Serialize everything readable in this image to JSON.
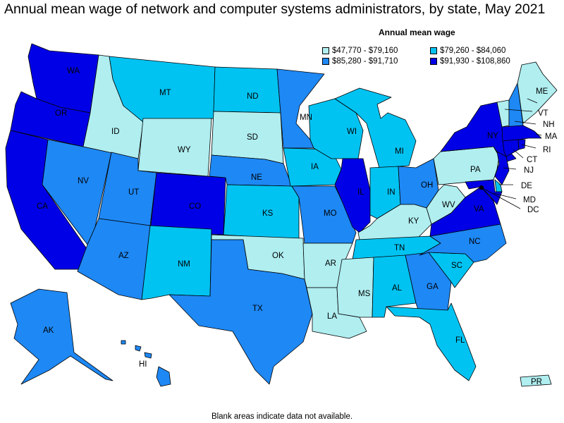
{
  "title": "Annual mean wage of network and computer systems administrators, by state, May 2021",
  "legend": {
    "title": "Annual mean wage",
    "items": [
      {
        "label": "$47,770 - $79,160",
        "color": "#b0eef0"
      },
      {
        "label": "$79,260 - $84,060",
        "color": "#00c3f2"
      },
      {
        "label": "$85,280 - $91,710",
        "color": "#1e88f5"
      },
      {
        "label": "$91,930 - $108,860",
        "color": "#0000e6"
      }
    ]
  },
  "footnote": "Blank areas indicate data not available.",
  "states": {
    "WA": {
      "label": "WA",
      "bin": 3
    },
    "OR": {
      "label": "OR",
      "bin": 3
    },
    "CA": {
      "label": "CA",
      "bin": 3
    },
    "NV": {
      "label": "NV",
      "bin": 2
    },
    "ID": {
      "label": "ID",
      "bin": 0
    },
    "MT": {
      "label": "MT",
      "bin": 1
    },
    "WY": {
      "label": "WY",
      "bin": 0
    },
    "UT": {
      "label": "UT",
      "bin": 2
    },
    "AZ": {
      "label": "AZ",
      "bin": 2
    },
    "CO": {
      "label": "CO",
      "bin": 3
    },
    "NM": {
      "label": "NM",
      "bin": 1
    },
    "ND": {
      "label": "ND",
      "bin": 1
    },
    "SD": {
      "label": "SD",
      "bin": 0
    },
    "NE": {
      "label": "NE",
      "bin": 2
    },
    "KS": {
      "label": "KS",
      "bin": 1
    },
    "OK": {
      "label": "OK",
      "bin": 0
    },
    "TX": {
      "label": "TX",
      "bin": 2
    },
    "MN": {
      "label": "MN",
      "bin": 2
    },
    "IA": {
      "label": "IA",
      "bin": 1
    },
    "MO": {
      "label": "MO",
      "bin": 2
    },
    "AR": {
      "label": "AR",
      "bin": 0
    },
    "LA": {
      "label": "LA",
      "bin": 0
    },
    "WI": {
      "label": "WI",
      "bin": 1
    },
    "IL": {
      "label": "IL",
      "bin": 3
    },
    "MI": {
      "label": "MI",
      "bin": 1
    },
    "IN": {
      "label": "IN",
      "bin": 1
    },
    "OH": {
      "label": "OH",
      "bin": 2
    },
    "KY": {
      "label": "KY",
      "bin": 0
    },
    "TN": {
      "label": "TN",
      "bin": 1
    },
    "MS": {
      "label": "MS",
      "bin": 0
    },
    "AL": {
      "label": "AL",
      "bin": 1
    },
    "GA": {
      "label": "GA",
      "bin": 2
    },
    "FL": {
      "label": "FL",
      "bin": 1
    },
    "SC": {
      "label": "SC",
      "bin": 1
    },
    "NC": {
      "label": "NC",
      "bin": 2
    },
    "VA": {
      "label": "VA",
      "bin": 3
    },
    "WV": {
      "label": "WV",
      "bin": 0
    },
    "PA": {
      "label": "PA",
      "bin": 0
    },
    "NY": {
      "label": "NY",
      "bin": 3
    },
    "ME": {
      "label": "ME",
      "bin": 0
    },
    "VT": {
      "label": "VT",
      "bin": 0
    },
    "NH": {
      "label": "NH",
      "bin": 2
    },
    "MA": {
      "label": "MA",
      "bin": 3
    },
    "RI": {
      "label": "RI",
      "bin": 3
    },
    "CT": {
      "label": "CT",
      "bin": 3
    },
    "NJ": {
      "label": "NJ",
      "bin": 3
    },
    "DE": {
      "label": "DE",
      "bin": 1
    },
    "MD": {
      "label": "MD",
      "bin": 3
    },
    "DC": {
      "label": "DC",
      "bin": 3
    },
    "AK": {
      "label": "AK",
      "bin": 2
    },
    "HI": {
      "label": "HI",
      "bin": 2
    },
    "PR": {
      "label": "PR",
      "bin": 0
    }
  }
}
